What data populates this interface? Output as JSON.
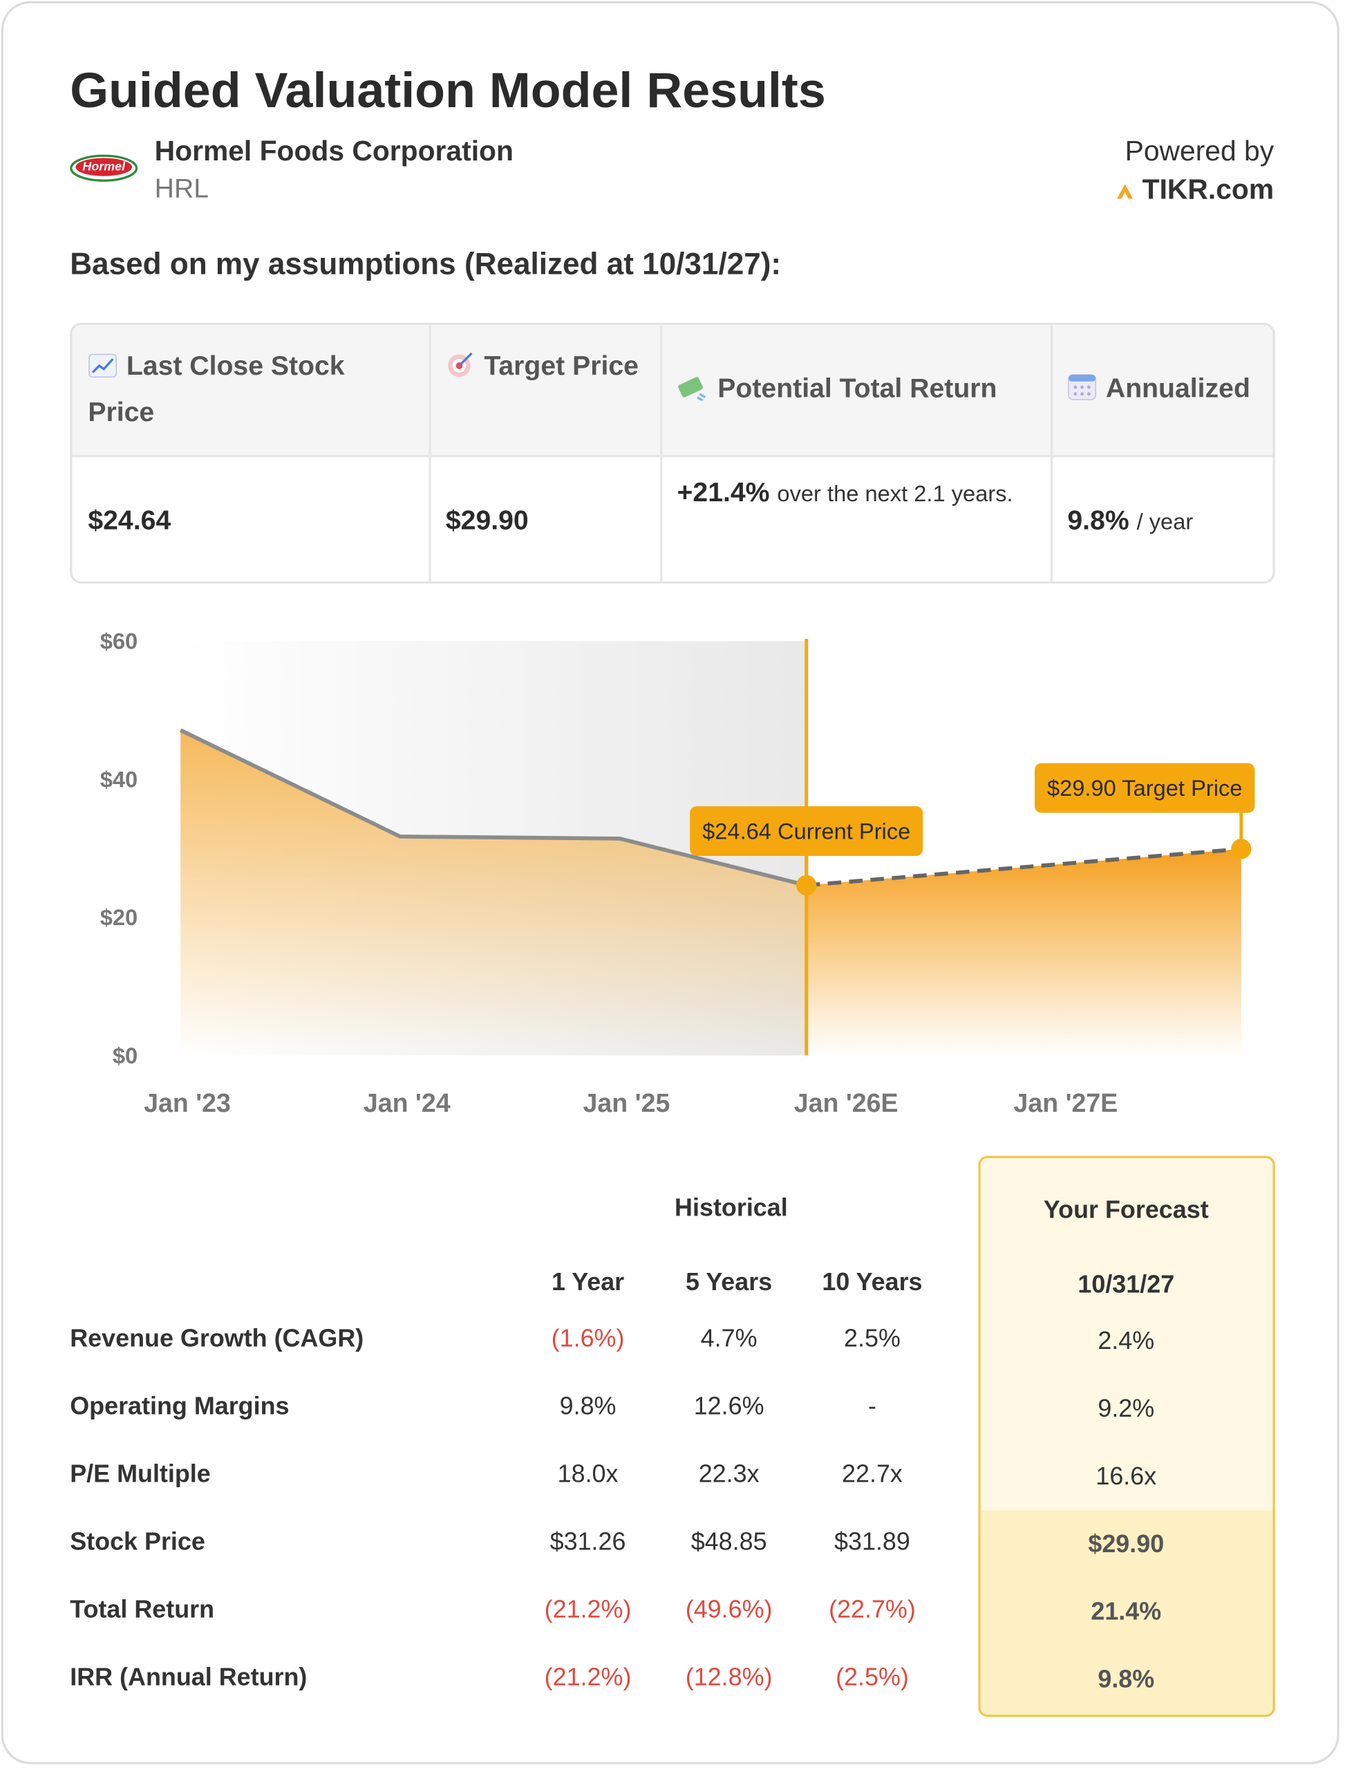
{
  "header": {
    "title": "Guided Valuation Model Results",
    "logo_text": "Hormel",
    "company": "Hormel Foods Corporation",
    "ticker": "HRL",
    "powered_by": "Powered by",
    "brand": "TIKR.com"
  },
  "subtitle": "Based on my assumptions (Realized at 10/31/27):",
  "summary": {
    "headers": [
      "Last Close Stock Price",
      "Target Price",
      "Potential Total Return",
      "Annualized"
    ],
    "values": [
      "$24.64",
      "$29.90",
      "+21.4%",
      "9.8%"
    ],
    "notes": [
      null,
      null,
      "over the next 2.1 years.",
      "/ year"
    ]
  },
  "chart_data": {
    "type": "area",
    "x": [
      2023,
      2024,
      2025,
      2025.85,
      2027.83
    ],
    "xlim": [
      2023,
      2027.83
    ],
    "xticks": [
      {
        "value": 2023,
        "label": "Jan '23"
      },
      {
        "value": 2024,
        "label": "Jan '24"
      },
      {
        "value": 2025,
        "label": "Jan '25"
      },
      {
        "value": 2026,
        "label": "Jan '26E"
      },
      {
        "value": 2027,
        "label": "Jan '27E"
      }
    ],
    "ylim": [
      0,
      60
    ],
    "yticks": [
      {
        "value": 0,
        "label": "$0"
      },
      {
        "value": 20,
        "label": "$20"
      },
      {
        "value": 40,
        "label": "$40"
      },
      {
        "value": 60,
        "label": "$60"
      }
    ],
    "series": [
      {
        "color": "#8c8c8c",
        "fill": "#f4b24a",
        "dashed": false,
        "values": [
          47.1,
          31.7,
          31.4,
          24.64,
          null
        ]
      },
      {
        "color": "#666666",
        "fill": "#f5a020",
        "dashed": true,
        "values": [
          null,
          null,
          null,
          24.64,
          29.9
        ]
      }
    ],
    "annotations": [
      "$24.64 Current Price",
      "$29.90 Target Price"
    ],
    "annotation_color": "#f5a80e",
    "shade_color": "#ececec"
  },
  "table": {
    "group_headers": [
      "Historical",
      "Your Forecast"
    ],
    "columns": [
      "1 Year",
      "5 Years",
      "10 Years",
      "10/31/27"
    ],
    "rows": [
      {
        "label": "Revenue Growth (CAGR)",
        "values": [
          "(1.6%)",
          "4.7%",
          "2.5%",
          "2.4%"
        ]
      },
      {
        "label": "Operating Margins",
        "values": [
          "9.8%",
          "12.6%",
          "-",
          "9.2%"
        ]
      },
      {
        "label": "P/E Multiple",
        "values": [
          "18.0x",
          "22.3x",
          "22.7x",
          "16.6x"
        ]
      },
      {
        "label": "Stock Price",
        "values": [
          "$31.26",
          "$48.85",
          "$31.89",
          "$29.90"
        ]
      },
      {
        "label": "Total Return",
        "values": [
          "(21.2%)",
          "(49.6%)",
          "(22.7%)",
          "21.4%"
        ]
      },
      {
        "label": "IRR (Annual Return)",
        "values": [
          "(21.2%)",
          "(12.8%)",
          "(2.5%)",
          "9.8%"
        ]
      }
    ]
  }
}
